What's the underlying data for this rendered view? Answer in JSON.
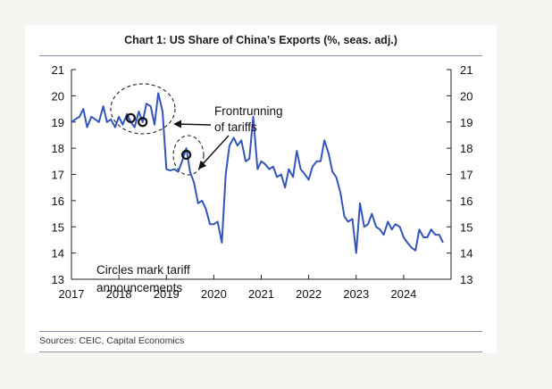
{
  "chart_data": {
    "type": "line",
    "title": "Chart 1: US Share of China’s Exports (%, seas. adj.)",
    "xlabel": "",
    "ylabel": "",
    "ylim": [
      13,
      21
    ],
    "xlim": [
      2017,
      2025
    ],
    "y_ticks": [
      "21",
      "20",
      "19",
      "18",
      "17",
      "16",
      "15",
      "14",
      "13"
    ],
    "x_ticks": [
      "2017",
      "2018",
      "2019",
      "2020",
      "2021",
      "2022",
      "2023",
      "2024"
    ],
    "grid": false,
    "series_color": "#3355bb",
    "series": [
      {
        "values": [
          [
            2017.0,
            19.0
          ],
          [
            2017.08,
            19.1
          ],
          [
            2017.17,
            19.2
          ],
          [
            2017.25,
            19.5
          ],
          [
            2017.33,
            18.8
          ],
          [
            2017.42,
            19.2
          ],
          [
            2017.5,
            19.1
          ],
          [
            2017.58,
            19.0
          ],
          [
            2017.67,
            19.6
          ],
          [
            2017.75,
            19.0
          ],
          [
            2017.83,
            19.1
          ],
          [
            2017.92,
            18.8
          ],
          [
            2018.0,
            19.2
          ],
          [
            2018.08,
            18.9
          ],
          [
            2018.17,
            19.3
          ],
          [
            2018.25,
            19.0
          ],
          [
            2018.33,
            18.8
          ],
          [
            2018.42,
            19.4
          ],
          [
            2018.5,
            19.0
          ],
          [
            2018.58,
            19.7
          ],
          [
            2018.67,
            19.6
          ],
          [
            2018.75,
            18.9
          ],
          [
            2018.83,
            20.1
          ],
          [
            2018.92,
            19.4
          ],
          [
            2019.0,
            17.2
          ],
          [
            2019.08,
            17.15
          ],
          [
            2019.17,
            17.2
          ],
          [
            2019.25,
            17.1
          ],
          [
            2019.33,
            17.5
          ],
          [
            2019.42,
            18.0
          ],
          [
            2019.5,
            17.1
          ],
          [
            2019.58,
            16.7
          ],
          [
            2019.67,
            15.9
          ],
          [
            2019.75,
            16.0
          ],
          [
            2019.83,
            15.7
          ],
          [
            2019.92,
            15.1
          ],
          [
            2020.0,
            15.1
          ],
          [
            2020.08,
            15.2
          ],
          [
            2020.17,
            14.4
          ],
          [
            2020.25,
            17.0
          ],
          [
            2020.33,
            18.1
          ],
          [
            2020.42,
            18.4
          ],
          [
            2020.5,
            18.1
          ],
          [
            2020.58,
            18.3
          ],
          [
            2020.67,
            17.5
          ],
          [
            2020.75,
            17.6
          ],
          [
            2020.83,
            19.2
          ],
          [
            2020.92,
            17.2
          ],
          [
            2021.0,
            17.5
          ],
          [
            2021.08,
            17.4
          ],
          [
            2021.17,
            17.2
          ],
          [
            2021.25,
            17.3
          ],
          [
            2021.33,
            16.9
          ],
          [
            2021.42,
            17.0
          ],
          [
            2021.5,
            16.5
          ],
          [
            2021.58,
            17.2
          ],
          [
            2021.67,
            16.9
          ],
          [
            2021.75,
            17.9
          ],
          [
            2021.83,
            17.2
          ],
          [
            2021.92,
            17.0
          ],
          [
            2022.0,
            16.8
          ],
          [
            2022.08,
            17.3
          ],
          [
            2022.17,
            17.5
          ],
          [
            2022.25,
            17.5
          ],
          [
            2022.33,
            18.3
          ],
          [
            2022.42,
            17.8
          ],
          [
            2022.5,
            17.1
          ],
          [
            2022.58,
            16.9
          ],
          [
            2022.67,
            16.3
          ],
          [
            2022.75,
            15.4
          ],
          [
            2022.83,
            15.2
          ],
          [
            2022.92,
            15.3
          ],
          [
            2023.0,
            14.0
          ],
          [
            2023.08,
            15.9
          ],
          [
            2023.17,
            15.0
          ],
          [
            2023.25,
            15.1
          ],
          [
            2023.33,
            15.5
          ],
          [
            2023.42,
            15.0
          ],
          [
            2023.5,
            14.9
          ],
          [
            2023.58,
            14.7
          ],
          [
            2023.67,
            15.2
          ],
          [
            2023.75,
            14.9
          ],
          [
            2023.83,
            15.1
          ],
          [
            2023.92,
            15.0
          ],
          [
            2024.0,
            14.6
          ],
          [
            2024.08,
            14.4
          ],
          [
            2024.17,
            14.2
          ],
          [
            2024.25,
            14.1
          ],
          [
            2024.33,
            14.9
          ],
          [
            2024.42,
            14.6
          ],
          [
            2024.5,
            14.6
          ],
          [
            2024.58,
            14.9
          ],
          [
            2024.67,
            14.7
          ],
          [
            2024.75,
            14.7
          ],
          [
            2024.83,
            14.4
          ]
        ]
      }
    ],
    "tariff_markers": [
      [
        2018.25,
        19.15
      ],
      [
        2018.5,
        19.0
      ],
      [
        2019.42,
        17.75
      ]
    ],
    "annotations": {
      "frontrunning_line1": "Frontrunning",
      "frontrunning_line2": "of tariffs",
      "circles_line1": "Circles mark tariff",
      "circles_line2": "announcements"
    }
  },
  "sources": "Sources: CEIC, Capital Economics"
}
